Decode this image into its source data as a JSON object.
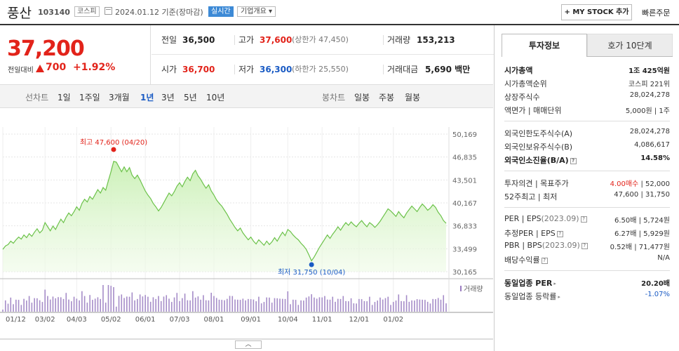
{
  "header": {
    "name": "풍산",
    "code": "103140",
    "market": "코스피",
    "date": "2024.01.12  기준(장마감)",
    "realtime": "실시간",
    "corp_info": "기업개요 ▾",
    "mystock": "+ MY STOCK 추가",
    "quick_order": "빠른주문"
  },
  "price": {
    "current": "37,200",
    "prev_label": "전일대비",
    "change": "700",
    "change_pct": "+1.92%",
    "colors": {
      "up": "#e2231a",
      "down": "#1a5bc4"
    }
  },
  "quote": {
    "prev_close_label": "전일",
    "prev_close": "36,500",
    "high_label": "고가",
    "high": "37,600",
    "upper_limit": "(상한가 47,450)",
    "volume_label": "거래량",
    "volume": "153,213",
    "open_label": "시가",
    "open": "36,700",
    "low_label": "저가",
    "low": "36,300",
    "lower_limit": "(하한가 25,550)",
    "amount_label": "거래대금",
    "amount": "5,690 백만"
  },
  "toolbar": {
    "line_label": "선차트",
    "periods": [
      "1일",
      "1주일",
      "3개월",
      "1년",
      "3년",
      "5년",
      "10년"
    ],
    "active_period": "1년",
    "candle_label": "봉차트",
    "candles": [
      "일봉",
      "주봉",
      "월봉"
    ]
  },
  "chart_data": {
    "type": "area",
    "x_ticks": [
      "01/12",
      "03/02",
      "04/03",
      "05/02",
      "06/01",
      "07/03",
      "08/01",
      "09/01",
      "10/04",
      "11/01",
      "12/01",
      "01/02"
    ],
    "y_ticks": [
      50169,
      46835,
      43501,
      40167,
      36833,
      33499,
      30165
    ],
    "ylim": [
      30165,
      50169
    ],
    "high": {
      "label": "최고",
      "value": "47,600",
      "date": "(04/20)"
    },
    "low": {
      "label": "최저",
      "value": "31,750",
      "date": "(10/04)"
    },
    "volume_legend": "거래량",
    "values": [
      33400,
      33900,
      34100,
      34600,
      34300,
      34800,
      35200,
      34900,
      35500,
      35100,
      35700,
      35300,
      35900,
      36400,
      35800,
      36200,
      37300,
      36700,
      36100,
      36800,
      36300,
      37100,
      37800,
      37300,
      38100,
      38700,
      38300,
      38900,
      39600,
      39100,
      40100,
      40700,
      40300,
      41100,
      40700,
      41400,
      42100,
      41600,
      42400,
      42000,
      43400,
      44700,
      46200,
      46100,
      45400,
      44700,
      45400,
      44700,
      45300,
      44200,
      43700,
      44200,
      43500,
      42700,
      41900,
      41300,
      40800,
      40100,
      39600,
      39000,
      39500,
      40200,
      40900,
      41600,
      41200,
      41800,
      42600,
      43100,
      42500,
      43300,
      43900,
      43400,
      44400,
      44900,
      44100,
      43600,
      42900,
      42300,
      42800,
      41900,
      41300,
      40600,
      40100,
      39700,
      39100,
      38500,
      37800,
      37200,
      36600,
      36100,
      36500,
      35800,
      35300,
      34800,
      35200,
      34600,
      34200,
      34800,
      34400,
      34000,
      34600,
      34100,
      34500,
      35100,
      34600,
      35300,
      35900,
      35400,
      36300,
      36000,
      35500,
      35100,
      34800,
      34300,
      33900,
      33400,
      32600,
      31750,
      32300,
      33000,
      33700,
      34300,
      34900,
      35500,
      35000,
      35600,
      36100,
      36700,
      36200,
      36800,
      37300,
      36900,
      37400,
      37000,
      36700,
      37200,
      37600,
      37100,
      36700,
      37300,
      37000,
      36600,
      37000,
      37500,
      38100,
      38700,
      39300,
      39000,
      38600,
      38200,
      38900,
      38400,
      38000,
      38700,
      39200,
      39700,
      39300,
      38900,
      39500,
      40000,
      39600,
      39100,
      39400,
      39900,
      39500,
      38800,
      38300,
      37600,
      37200
    ]
  },
  "invest": {
    "tabs": [
      "투자정보",
      "호가 10단계"
    ],
    "market_cap_label": "시가총액",
    "market_cap": "1조 425억원",
    "market_cap_rank_label": "시가총액순위",
    "market_cap_rank": "코스피 221위",
    "shares_label": "상장주식수",
    "shares": "28,024,278",
    "par_label": "액면가 | 매매단위",
    "par": "5,000원 | 1주",
    "foreign_limit_label": "외국인한도주식수(A)",
    "foreign_limit": "28,024,278",
    "foreign_hold_label": "외국인보유주식수(B)",
    "foreign_hold": "4,086,617",
    "foreign_ratio_label": "외국인소진율(B/A)",
    "foreign_ratio": "14.58%",
    "opinion_label": "투자의견 | 목표주가",
    "opinion": "4.00매수",
    "target": "| 52,000",
    "w52_label": "52주최고 | 최저",
    "w52": "47,600 | 31,750",
    "per_label": "PER | EPS",
    "per_note": "(2023.09)",
    "per": "6.50배 | 5,724원",
    "est_per_label": "추정PER | EPS",
    "est_per": "6.27배 | 5,929원",
    "pbr_label": "PBR | BPS",
    "pbr_note": "(2023.09)",
    "pbr": "0.52배 | 71,477원",
    "div_label": "배당수익률",
    "div": "N/A",
    "sector_per_label": "동일업종 PER",
    "sector_per": "20.20배",
    "sector_rate_label": "동일업종 등락률",
    "sector_rate": "-1.07%"
  }
}
